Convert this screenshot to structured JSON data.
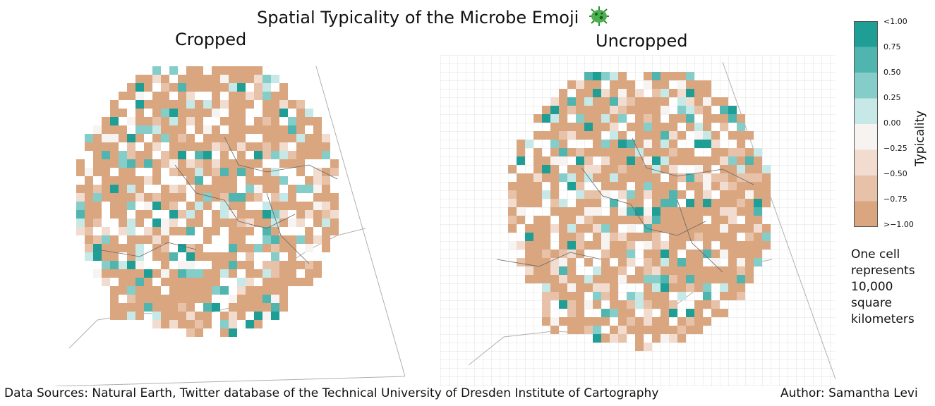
{
  "title": "Spatial Typicality of the Microbe Emoji",
  "title_icon": "microbe-icon",
  "panels": [
    {
      "title": "Cropped"
    },
    {
      "title": "Uncropped"
    }
  ],
  "legend": {
    "label": "Typicality",
    "ticks": [
      "<1.00",
      "0.75",
      "0.50",
      "0.25",
      "0.00",
      "−0.25",
      "−0.50",
      "−0.75",
      ">−1.00"
    ],
    "colors": [
      "#1f9e96",
      "#4fb5ae",
      "#85cdc8",
      "#c6e8e6",
      "#f6f3f1",
      "#f1dccf",
      "#e8c2a8",
      "#d9a67f"
    ]
  },
  "note": "One cell represents 10,000 square kilometers",
  "sources": "Data Sources: Natural Earth, Twitter database of the Technical University of Dresden Institute of Cartography",
  "author": "Author: Samantha Levi"
}
